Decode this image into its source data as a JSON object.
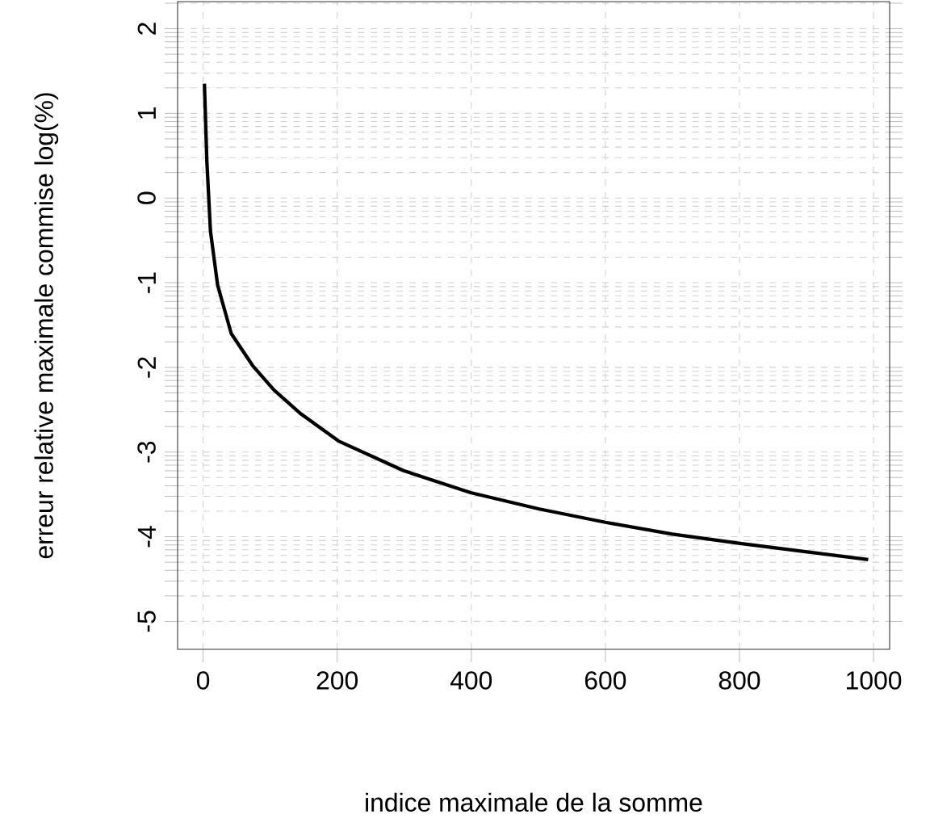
{
  "chart_data": {
    "type": "line",
    "xlabel": "indice maximale de la somme",
    "ylabel": "erreur relative maximale commise log(%)",
    "x": [
      2,
      5.6,
      11,
      21.7,
      42,
      74,
      106,
      146,
      202,
      299,
      399,
      500,
      600,
      700,
      801,
      901,
      992
    ],
    "values": [
      1.35,
      0.44,
      -0.39,
      -1.03,
      -1.6,
      -1.98,
      -2.27,
      -2.55,
      -2.87,
      -3.22,
      -3.48,
      -3.67,
      -3.83,
      -3.97,
      -4.08,
      -4.18,
      -4.27
    ],
    "color": "#000000",
    "line_style": "solid",
    "marker": "none",
    "grid": true,
    "xlim": [
      -38,
      1024
    ],
    "ylim": [
      -5.33,
      2.32
    ],
    "xticks": [
      0,
      200,
      400,
      600,
      800,
      1000
    ],
    "yticks": [
      -5,
      {
        "value": -4.699,
        "label": null
      },
      {
        "value": -4.523,
        "label": null
      },
      {
        "value": -4.398,
        "label": null
      },
      {
        "value": -4.301,
        "label": null
      },
      {
        "value": -4.222,
        "label": null
      },
      {
        "value": -4.155,
        "label": null
      },
      {
        "value": -4.097,
        "label": null
      },
      {
        "value": -4.046,
        "label": null
      },
      -4,
      {
        "value": -3.699,
        "label": null
      },
      {
        "value": -3.523,
        "label": null
      },
      {
        "value": -3.398,
        "label": null
      },
      {
        "value": -3.301,
        "label": null
      },
      {
        "value": -3.222,
        "label": null
      },
      {
        "value": -3.155,
        "label": null
      },
      {
        "value": -3.097,
        "label": null
      },
      {
        "value": -3.046,
        "label": null
      },
      -3,
      {
        "value": -2.699,
        "label": null
      },
      {
        "value": -2.523,
        "label": null
      },
      {
        "value": -2.398,
        "label": null
      },
      {
        "value": -2.301,
        "label": null
      },
      {
        "value": -2.222,
        "label": null
      },
      {
        "value": -2.155,
        "label": null
      },
      {
        "value": -2.097,
        "label": null
      },
      {
        "value": -2.046,
        "label": null
      },
      -2,
      {
        "value": -1.699,
        "label": null
      },
      {
        "value": -1.523,
        "label": null
      },
      {
        "value": -1.398,
        "label": null
      },
      {
        "value": -1.301,
        "label": null
      },
      {
        "value": -1.222,
        "label": null
      },
      {
        "value": -1.155,
        "label": null
      },
      {
        "value": -1.097,
        "label": null
      },
      {
        "value": -1.046,
        "label": null
      },
      -1,
      {
        "value": -0.699,
        "label": null
      },
      {
        "value": -0.523,
        "label": null
      },
      {
        "value": -0.398,
        "label": null
      },
      {
        "value": -0.301,
        "label": null
      },
      {
        "value": -0.222,
        "label": null
      },
      {
        "value": -0.155,
        "label": null
      },
      {
        "value": -0.097,
        "label": null
      },
      {
        "value": -0.046,
        "label": null
      },
      0,
      {
        "value": 0.301,
        "label": null
      },
      {
        "value": 0.477,
        "label": null
      },
      {
        "value": 0.602,
        "label": null
      },
      {
        "value": 0.699,
        "label": null
      },
      {
        "value": 0.778,
        "label": null
      },
      {
        "value": 0.845,
        "label": null
      },
      {
        "value": 0.903,
        "label": null
      },
      {
        "value": 0.954,
        "label": null
      },
      1,
      {
        "value": 1.301,
        "label": null
      },
      {
        "value": 1.477,
        "label": null
      },
      {
        "value": 1.602,
        "label": null
      },
      {
        "value": 1.699,
        "label": null
      },
      {
        "value": 1.778,
        "label": null
      },
      {
        "value": 1.845,
        "label": null
      },
      {
        "value": 1.903,
        "label": null
      },
      {
        "value": 1.954,
        "label": null
      },
      2,
      {
        "value": 2.301,
        "label": null
      }
    ]
  }
}
